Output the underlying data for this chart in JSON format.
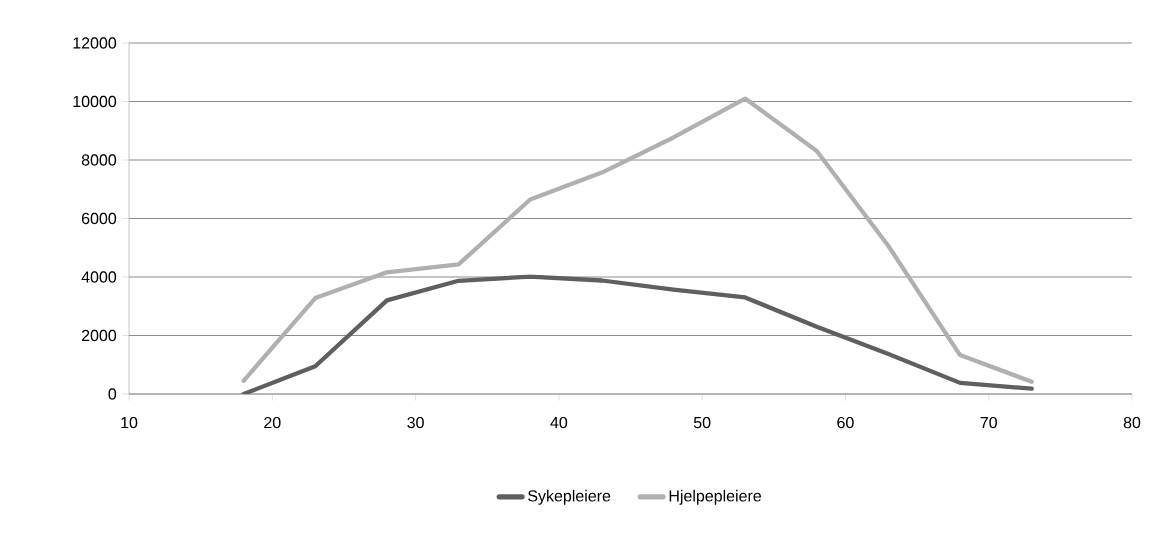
{
  "chart_data": {
    "type": "line",
    "x": [
      18,
      23,
      28,
      33,
      38,
      43,
      48,
      53,
      58,
      63,
      68,
      73
    ],
    "series": [
      {
        "name": "Sykepleiere",
        "color": "#5f5f5f",
        "values": [
          0,
          950,
          3200,
          3870,
          4010,
          3880,
          3570,
          3300,
          2300,
          1370,
          380,
          180
        ]
      },
      {
        "name": "Hjelpepleiere",
        "color": "#b0b0b0",
        "values": [
          450,
          3280,
          4160,
          4430,
          6650,
          7570,
          8770,
          10100,
          8310,
          5060,
          1330,
          420
        ]
      }
    ],
    "xlim": [
      10,
      80
    ],
    "xticks": [
      10,
      20,
      30,
      40,
      50,
      60,
      70,
      80
    ],
    "ylim": [
      0,
      12000
    ],
    "yticks": [
      0,
      2000,
      4000,
      6000,
      8000,
      10000,
      12000
    ],
    "grid": "y",
    "legend": "bottom",
    "marker": "none",
    "line_style": "solid"
  }
}
